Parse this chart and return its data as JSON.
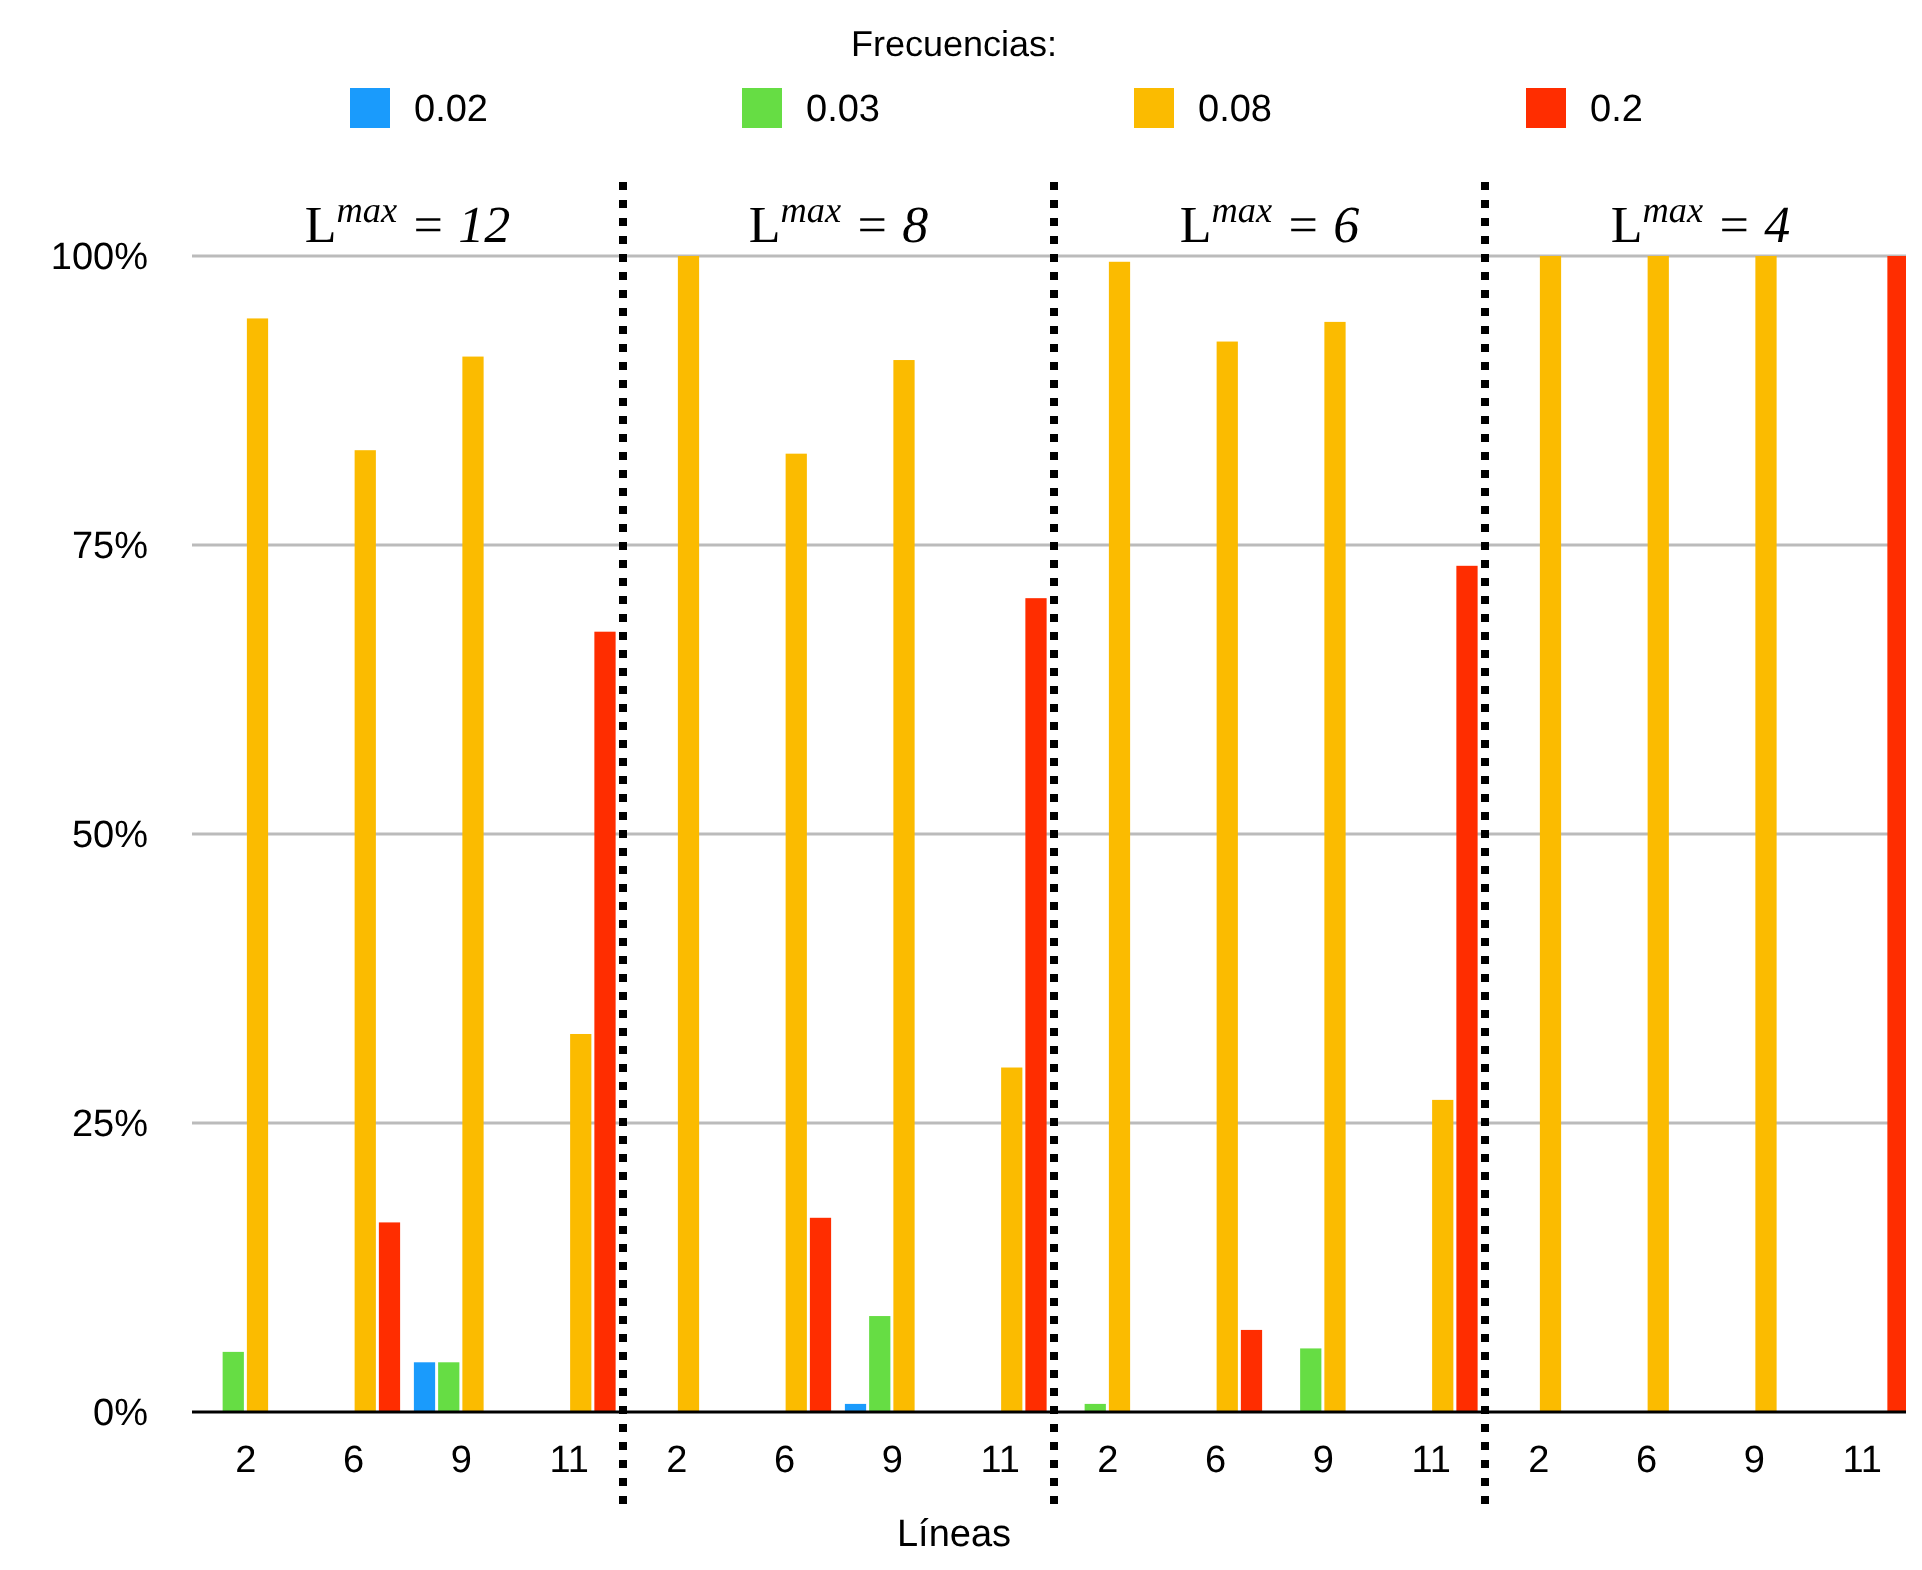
{
  "chart_data": {
    "type": "bar",
    "xlabel": "Líneas",
    "legend_title": "Frecuencias:",
    "legend": "top",
    "grid": "y",
    "categories": [
      "2",
      "6",
      "9",
      "11",
      "2",
      "6",
      "9",
      "11",
      "2",
      "6",
      "9",
      "11",
      "2",
      "6",
      "9",
      "11"
    ],
    "series": [
      {
        "name": "0.02",
        "color": "#1a9bfc",
        "values": [
          0,
          0,
          4.3,
          0,
          0,
          0,
          0.7,
          0,
          0,
          0,
          0,
          0,
          0,
          0,
          0,
          0
        ]
      },
      {
        "name": "0.03",
        "color": "#66dd44",
        "values": [
          5.2,
          0,
          4.3,
          0,
          0,
          0,
          8.3,
          0,
          0.7,
          0,
          5.5,
          0,
          0,
          0,
          0,
          0
        ]
      },
      {
        "name": "0.08",
        "color": "#fbbb00",
        "values": [
          94.6,
          83.2,
          91.3,
          32.7,
          100,
          82.9,
          91,
          29.8,
          99.5,
          92.6,
          94.3,
          27,
          100,
          100,
          100,
          0
        ]
      },
      {
        "name": "0.2",
        "color": "#ff2d00",
        "values": [
          0,
          16.4,
          0,
          67.5,
          0,
          16.8,
          0,
          70.4,
          0,
          7.1,
          0,
          73.2,
          0,
          0,
          0,
          100
        ]
      }
    ],
    "ylim": [
      0,
      100
    ],
    "yticks": [
      {
        "value": 0,
        "label": "0%"
      },
      {
        "value": 25,
        "label": "25%"
      },
      {
        "value": 50,
        "label": "50%"
      },
      {
        "value": 75,
        "label": "75%"
      },
      {
        "value": 100,
        "label": "100%"
      }
    ],
    "annotations": [
      "L$^{max}$ = 12",
      "L$^{max}$ = 8",
      "L$^{max}$ = 6",
      "L$^{max}$ = 4"
    ]
  }
}
